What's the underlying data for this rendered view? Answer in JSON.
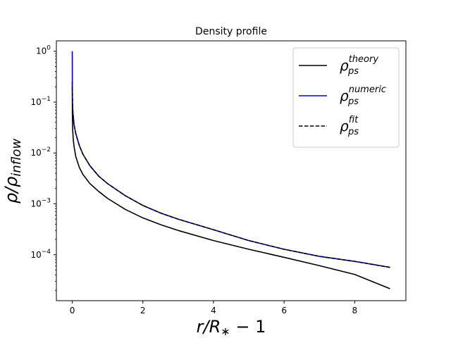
{
  "chart_data": {
    "type": "line",
    "title": "Density profile",
    "xlabel": "r/R₁ − 1",
    "xlabel_parts": {
      "var": "r/R",
      "sub": "∗",
      "tail": " − 1"
    },
    "ylabel_parts": {
      "main": "ρ/ρ",
      "sub": "inflow"
    },
    "xscale": "linear",
    "yscale": "log",
    "xlim": [
      -0.45,
      9.45
    ],
    "ylim": [
      1.25e-05,
      1.6
    ],
    "xticks": [
      0,
      2,
      4,
      6,
      8
    ],
    "xtick_labels": [
      "0",
      "2",
      "4",
      "6",
      "8"
    ],
    "yticks": [
      0.0001,
      0.001,
      0.01,
      0.1,
      1
    ],
    "ytick_labels": [
      {
        "base": "10",
        "exp": "−4"
      },
      {
        "base": "10",
        "exp": "−3"
      },
      {
        "base": "10",
        "exp": "−2"
      },
      {
        "base": "10",
        "exp": "−1"
      },
      {
        "base": "10",
        "exp": "0"
      }
    ],
    "grid": false,
    "legend_position": "top-right",
    "series": [
      {
        "name": "ρps theory",
        "legend": {
          "symbol": "ρ",
          "sub": "ps",
          "sup": "theory"
        },
        "color": "#000000",
        "dash": "solid",
        "x": [
          0,
          0.003,
          0.01,
          0.03,
          0.05,
          0.1,
          0.2,
          0.3,
          0.5,
          0.75,
          1,
          1.5,
          2,
          2.5,
          3,
          4,
          5,
          6,
          7,
          8,
          9
        ],
        "y": [
          0.25,
          0.06,
          0.03,
          0.018,
          0.0135,
          0.0085,
          0.0052,
          0.0038,
          0.0025,
          0.00175,
          0.00128,
          0.00078,
          0.00053,
          0.00039,
          0.0003,
          0.00019,
          0.000128,
          8.9e-05,
          6.1e-05,
          4.1e-05,
          2.15e-05
        ]
      },
      {
        "name": "ρps numeric",
        "legend": {
          "symbol": "ρ",
          "sub": "ps",
          "sup": "numeric"
        },
        "color": "#0000cc",
        "dash": "solid",
        "x": [
          0,
          0.002,
          0.005,
          0.01,
          0.02,
          0.05,
          0.1,
          0.2,
          0.3,
          0.5,
          0.75,
          1,
          1.5,
          2,
          2.5,
          3,
          4,
          5,
          6,
          7,
          8,
          9
        ],
        "y": [
          1.0,
          0.25,
          0.12,
          0.08,
          0.06,
          0.036,
          0.024,
          0.014,
          0.0095,
          0.0056,
          0.0035,
          0.0025,
          0.00145,
          0.00093,
          0.00066,
          0.0005,
          0.00031,
          0.00019,
          0.000128,
          9.3e-05,
          7.4e-05,
          5.65e-05
        ]
      },
      {
        "name": "ρps fit",
        "legend": {
          "symbol": "ρ",
          "sub": "ps",
          "sup": "fit"
        },
        "color": "#000000",
        "dash": "dashed",
        "x": [
          0.002,
          0.005,
          0.01,
          0.02,
          0.05,
          0.1,
          0.2,
          0.3,
          0.5,
          0.75,
          1,
          1.5,
          2,
          2.5,
          3,
          4,
          5,
          6,
          7,
          8,
          9
        ],
        "y": [
          0.2,
          0.12,
          0.08,
          0.06,
          0.036,
          0.024,
          0.014,
          0.0095,
          0.0056,
          0.0035,
          0.0025,
          0.00145,
          0.00093,
          0.00066,
          0.0005,
          0.00031,
          0.00019,
          0.000128,
          9.3e-05,
          7.4e-05,
          5.65e-05
        ]
      }
    ]
  }
}
